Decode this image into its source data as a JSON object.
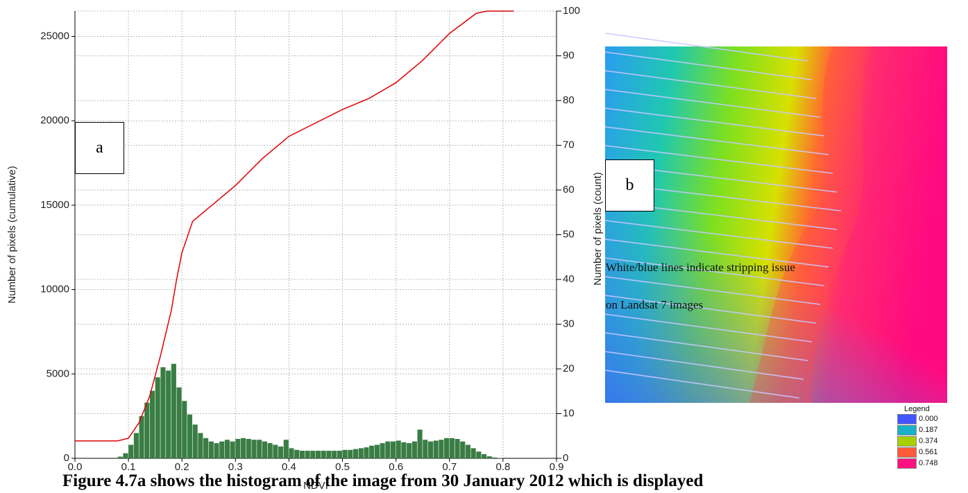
{
  "chart_data": {
    "type": "histogram",
    "bins": [
      0.08,
      0.09,
      0.1,
      0.11,
      0.12,
      0.13,
      0.14,
      0.15,
      0.16,
      0.17,
      0.18,
      0.19,
      0.2,
      0.21,
      0.22,
      0.23,
      0.24,
      0.25,
      0.26,
      0.27,
      0.28,
      0.29,
      0.3,
      0.31,
      0.32,
      0.33,
      0.34,
      0.35,
      0.36,
      0.37,
      0.38,
      0.39,
      0.4,
      0.41,
      0.42,
      0.43,
      0.44,
      0.45,
      0.46,
      0.47,
      0.48,
      0.49,
      0.5,
      0.51,
      0.52,
      0.53,
      0.54,
      0.55,
      0.56,
      0.57,
      0.58,
      0.59,
      0.6,
      0.61,
      0.62,
      0.63,
      0.64,
      0.65,
      0.66,
      0.67,
      0.68,
      0.69,
      0.7,
      0.71,
      0.72,
      0.73,
      0.74,
      0.75,
      0.76,
      0.77,
      0.78,
      0.79,
      0.8
    ],
    "values": [
      100,
      300,
      800,
      1500,
      2500,
      3300,
      4000,
      4800,
      5400,
      5200,
      5600,
      4200,
      3400,
      2600,
      2000,
      1500,
      1200,
      1000,
      900,
      1000,
      1100,
      1000,
      1150,
      1200,
      1150,
      1100,
      1100,
      1000,
      900,
      800,
      700,
      1100,
      600,
      500,
      450,
      450,
      450,
      450,
      450,
      450,
      450,
      450,
      500,
      500,
      550,
      600,
      650,
      750,
      800,
      900,
      1000,
      1000,
      1050,
      950,
      900,
      1000,
      1700,
      1100,
      1000,
      1050,
      1100,
      1200,
      1200,
      1150,
      1000,
      800,
      600,
      400,
      250,
      120,
      50,
      20
    ],
    "color": "#3a7d44",
    "cumulative": {
      "x": [
        0,
        0.08,
        0.1,
        0.12,
        0.14,
        0.16,
        0.18,
        0.19,
        0.2,
        0.22,
        0.25,
        0.3,
        0.35,
        0.4,
        0.45,
        0.5,
        0.55,
        0.6,
        0.65,
        0.7,
        0.75,
        0.77,
        0.82
      ],
      "values": [
        3.9,
        3.9,
        4.5,
        8,
        14,
        23,
        33,
        40,
        46,
        53,
        56,
        61,
        67,
        72,
        75,
        78,
        80.5,
        84,
        89,
        95,
        99.5,
        100,
        100
      ],
      "color": "#e00000",
      "axis": "y2"
    },
    "xlim": [
      0,
      0.9
    ],
    "xticks": [
      {
        "value": 0,
        "label": "0.0"
      },
      0.1,
      0.2,
      0.3,
      0.4,
      0.5,
      0.6,
      0.7,
      0.8,
      0.9
    ],
    "ylim": [
      0,
      26500
    ],
    "yticks": [
      0,
      5000,
      10000,
      15000,
      20000,
      25000
    ],
    "y2lim": [
      0,
      100
    ],
    "y2ticks": [
      0,
      10,
      20,
      30,
      40,
      50,
      60,
      70,
      80,
      90,
      100
    ],
    "grid": true,
    "x_label": "NDVI",
    "y_label": "Number of pixels (cumulative)",
    "y2_label": "Number of pixels (count)",
    "annotations": [
      "a",
      "b",
      "White/blue lines  indicate  stripping  issue",
      "on Landsat 7 images"
    ]
  },
  "map": {
    "legend_title": "Legend",
    "items": [
      {
        "label": "0.000",
        "color": "#4455ff"
      },
      {
        "label": "0.187",
        "color": "#18b2c8"
      },
      {
        "label": "0.374",
        "color": "#a8d000"
      },
      {
        "label": "0.561",
        "color": "#ff5a3a"
      },
      {
        "label": "0.748",
        "color": "#ff1080"
      }
    ]
  },
  "caption": "Figure 4.7a shows the histogram of the image from 30 January 2012 which is displayed"
}
